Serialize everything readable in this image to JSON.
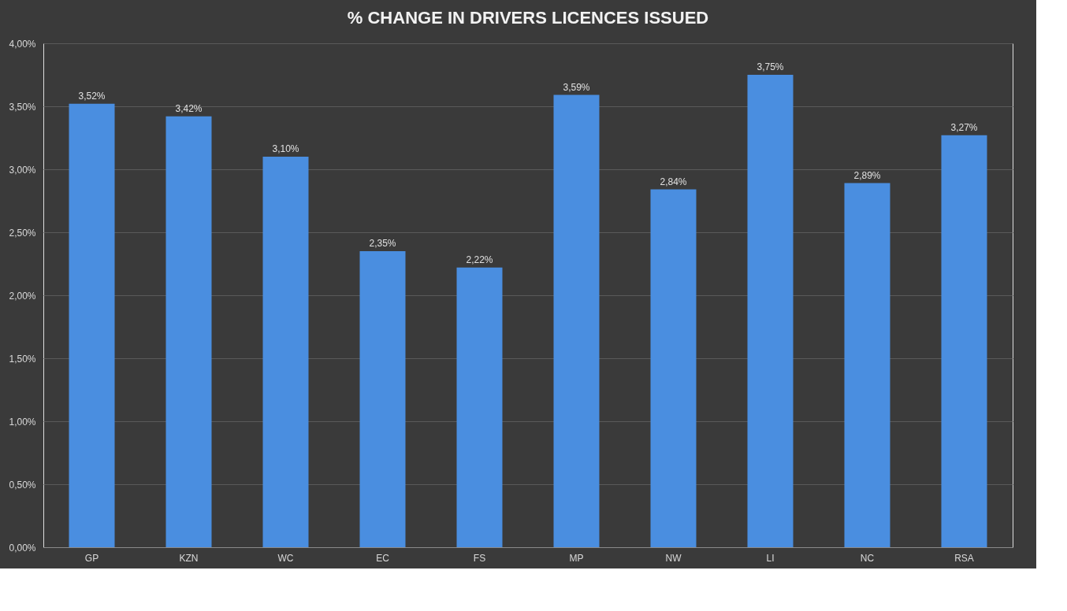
{
  "chart_data": {
    "type": "bar",
    "title": "% CHANGE IN DRIVERS LICENCES ISSUED",
    "categories": [
      "GP",
      "KZN",
      "WC",
      "EC",
      "FS",
      "MP",
      "NW",
      "LI",
      "NC",
      "RSA"
    ],
    "values": [
      3.52,
      3.42,
      3.1,
      2.35,
      2.22,
      3.59,
      2.84,
      3.75,
      2.89,
      3.27
    ],
    "value_labels": [
      "3,52%",
      "3,42%",
      "3,10%",
      "2,35%",
      "2,22%",
      "3,59%",
      "2,84%",
      "3,75%",
      "2,89%",
      "3,27%"
    ],
    "color": "#4a8ee0",
    "ylim": [
      0,
      4
    ],
    "yticks": [
      {
        "value": 0,
        "label": "0,00%"
      },
      {
        "value": 0.5,
        "label": "0,50%"
      },
      {
        "value": 1,
        "label": "1,00%"
      },
      {
        "value": 1.5,
        "label": "1,50%"
      },
      {
        "value": 2,
        "label": "2,00%"
      },
      {
        "value": 2.5,
        "label": "2,50%"
      },
      {
        "value": 3,
        "label": "3,00%"
      },
      {
        "value": 3.5,
        "label": "3,50%"
      },
      {
        "value": 4,
        "label": "4,00%"
      }
    ],
    "grid": "y"
  }
}
